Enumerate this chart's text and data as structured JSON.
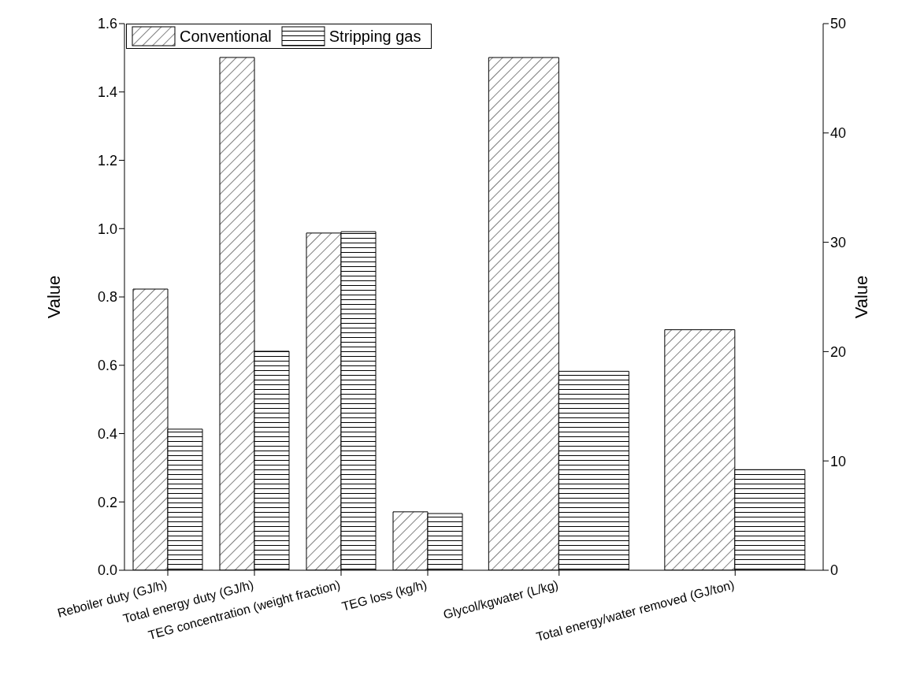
{
  "chart_data": [
    {
      "type": "bar",
      "ylabel": "Value",
      "categories": [
        "Reboiler duty (GJ/h)",
        "Total energy duty (GJ/h)",
        "TEG concentration (weight fraction)",
        "TEG loss (kg/h)"
      ],
      "series": [
        {
          "name": "Conventional",
          "color": "#000000",
          "values": [
            0.823,
            1.501,
            0.987,
            0.171
          ]
        },
        {
          "name": "Stripping gas",
          "color": "#000000",
          "values": [
            0.413,
            0.641,
            0.991,
            0.166
          ]
        }
      ],
      "ylim": [
        0,
        1.6
      ],
      "yticks": [
        {
          "value": 0,
          "label": "0.0"
        },
        {
          "value": 0.2,
          "label": "0.2"
        },
        {
          "value": 0.4,
          "label": "0.4"
        },
        {
          "value": 0.6,
          "label": "0.6"
        },
        {
          "value": 0.8,
          "label": "0.8"
        },
        {
          "value": 1,
          "label": "1.0"
        },
        {
          "value": 1.2,
          "label": "1.2"
        },
        {
          "value": 1.4,
          "label": "1.4"
        },
        {
          "value": 1.6,
          "label": "1.6"
        }
      ],
      "grid": false,
      "legend": "top left"
    },
    {
      "type": "bar",
      "y2label": "Value",
      "categories": [
        "Glycol/kgwater (L/kg)",
        "Total energy/water removed (GJ/ton)"
      ],
      "series": [
        {
          "color": "#000000",
          "axis": "y2",
          "values": [
            46.9,
            22.0
          ]
        },
        {
          "color": "#000000",
          "axis": "y2",
          "values": [
            18.2,
            9.2
          ]
        }
      ],
      "y2lim": [
        0,
        50
      ],
      "y2ticks": [
        0,
        10,
        20,
        30,
        40,
        50
      ],
      "grid": false,
      "legend": false
    }
  ]
}
